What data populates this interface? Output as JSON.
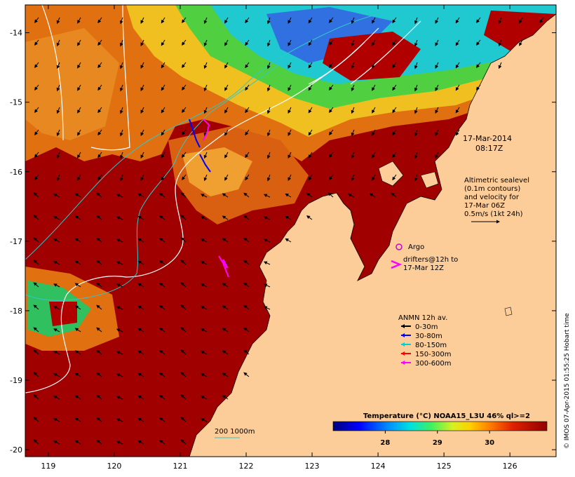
{
  "map": {
    "x_ticks": [
      "119",
      "120",
      "121",
      "122",
      "123",
      "124",
      "125",
      "126"
    ],
    "y_ticks": [
      "-14",
      "-15",
      "-16",
      "-17",
      "-18",
      "-19",
      "-20"
    ],
    "lon_range": [
      118.65,
      126.7
    ],
    "lat_range": [
      -13.6,
      -20.1
    ]
  },
  "timestamp": {
    "date": "17-Mar-2014",
    "time": "08:17Z"
  },
  "altimetry_note": {
    "line1": "Altimetric sealevel",
    "line2": "(0.1m contours)",
    "line3": "and velocity for",
    "line4": "17-Mar 06Z",
    "line5": "0.5m/s (1kt 24h)"
  },
  "argo": {
    "label": "Argo",
    "color": "#d000d0"
  },
  "drifters": {
    "line1": "drifters@12h to",
    "line2": "17-Mar 12Z",
    "color": "#ff00ff"
  },
  "anmn_legend": {
    "title": "ANMN 12h av.",
    "items": [
      {
        "label": "0-30m",
        "color": "#000000"
      },
      {
        "label": "30-80m",
        "color": "#0000ff"
      },
      {
        "label": "80-150m",
        "color": "#00d0d0"
      },
      {
        "label": "150-300m",
        "color": "#ff0000"
      },
      {
        "label": "300-600m",
        "color": "#ff00ff"
      }
    ]
  },
  "colorbar": {
    "title": "Temperature (°C) NOAA15_L3U 46% ql>=2",
    "ticks": [
      "28",
      "29",
      "30"
    ],
    "tick_values": [
      28,
      29,
      30
    ],
    "range": [
      27.0,
      31.1
    ]
  },
  "depth_legend": {
    "label": "200 1000m"
  },
  "credit": "© IMOS 07-Apr-2015 01:55:25 Hobart time",
  "colors": {
    "land": "#fccc99",
    "sst_hot": "#a00000",
    "contour": "#ffffff",
    "isobath": "#30c8c8"
  }
}
